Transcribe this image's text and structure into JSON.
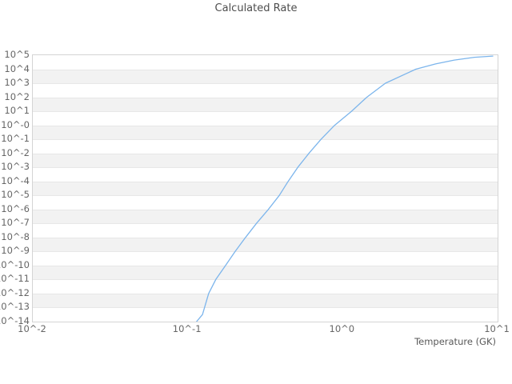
{
  "chart_data": {
    "type": "line",
    "title": "Calculated Rate",
    "xlabel": "Temperature (GK)",
    "ylabel": "",
    "x_scale": "log10",
    "y_scale": "log10",
    "xlim_log10": [
      -2,
      1
    ],
    "ylim_log10": [
      -14,
      5
    ],
    "x_tick_labels": [
      "10^-2",
      "10^-1",
      "10^0",
      "10^1"
    ],
    "y_tick_labels": [
      "10^5",
      "10^4",
      "10^3",
      "10^2",
      "10^1",
      "10^-0",
      "10^-1",
      "10^-2",
      "10^-3",
      "10^-4",
      "10^-5",
      "10^-6",
      "10^-7",
      "10^-8",
      "10^-9",
      "10^-10",
      "10^-11",
      "10^-12",
      "10^-13",
      "10^-14"
    ],
    "grid": "horizontal gridlines with alternating shaded decade bands",
    "legend_position": "none",
    "series": [
      {
        "name": "calculated-rate",
        "color": "#7cb5ec",
        "points_format": "[log10(temperature GK), log10(rate)]",
        "points": [
          [
            -0.943,
            -14.0
          ],
          [
            -0.905,
            -13.5
          ],
          [
            -0.865,
            -12.0
          ],
          [
            -0.819,
            -11.0
          ],
          [
            -0.756,
            -10.0
          ],
          [
            -0.694,
            -9.0
          ],
          [
            -0.627,
            -8.0
          ],
          [
            -0.557,
            -7.0
          ],
          [
            -0.48,
            -6.0
          ],
          [
            -0.409,
            -5.0
          ],
          [
            -0.352,
            -4.0
          ],
          [
            -0.29,
            -3.0
          ],
          [
            -0.218,
            -2.0
          ],
          [
            -0.14,
            -1.0
          ],
          [
            -0.052,
            0.0
          ],
          [
            0.057,
            1.0
          ],
          [
            0.155,
            2.0
          ],
          [
            0.275,
            3.0
          ],
          [
            0.472,
            4.0
          ],
          [
            0.6,
            4.38
          ],
          [
            0.72,
            4.65
          ],
          [
            0.85,
            4.85
          ],
          [
            0.969,
            4.94
          ]
        ]
      }
    ],
    "colors": {
      "band_shade": "#f2f2f2",
      "gridline": "#e7e7e7",
      "plot_border": "#d4d4d4",
      "tick_text": "#666666",
      "title_text": "#4d4d4d",
      "line": "#7cb5ec"
    }
  }
}
